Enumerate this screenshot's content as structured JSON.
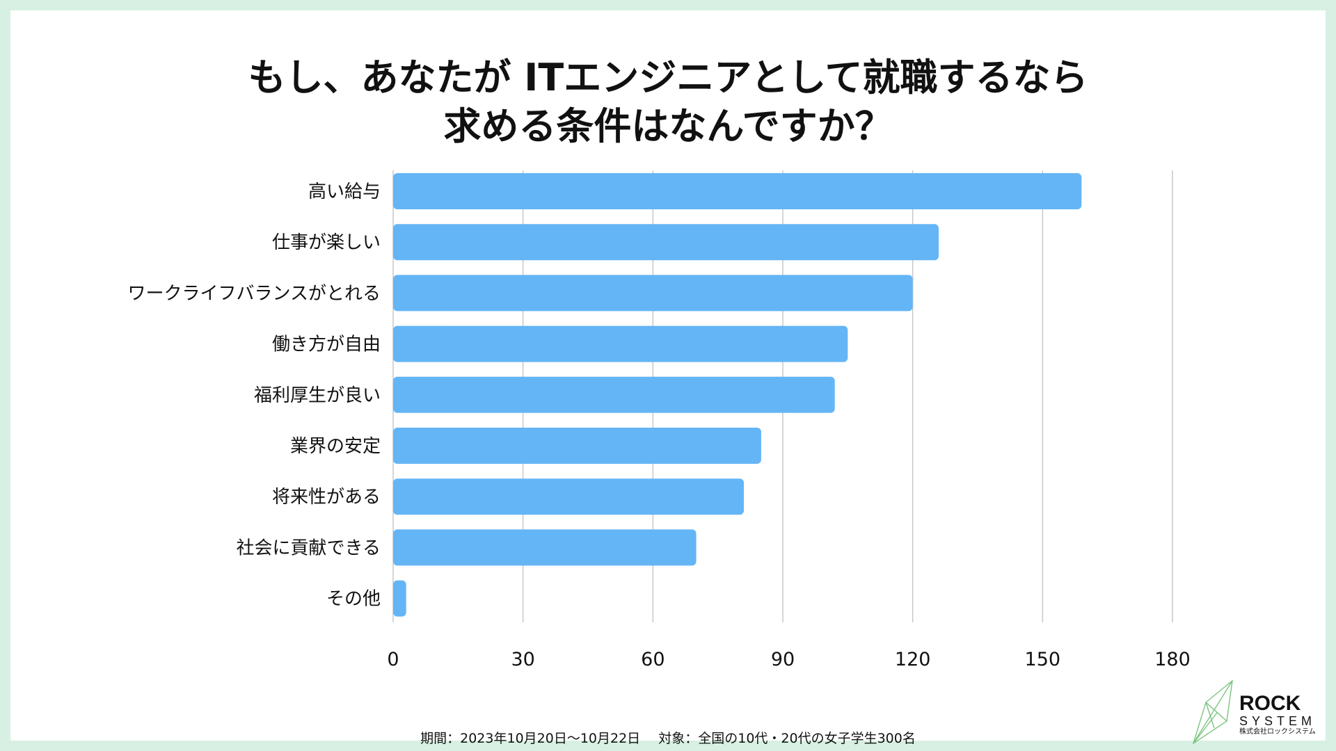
{
  "title_lines": [
    "もし、あなたが ITエンジニアとして就職するなら",
    "求める条件はなんですか？"
  ],
  "chart_data": {
    "type": "bar",
    "orientation": "horizontal",
    "title": "もし、あなたが ITエンジニアとして就職するなら求める条件はなんですか？",
    "categories": [
      "高い給与",
      "仕事が楽しい",
      "ワークライフバランスがとれる",
      "働き方が自由",
      "福利厚生が良い",
      "業界の安定",
      "将来性がある",
      "社会に貢献できる",
      "その他"
    ],
    "values": [
      159,
      126,
      120,
      105,
      102,
      85,
      81,
      70,
      3
    ],
    "xlim": [
      0,
      180
    ],
    "xticks": [
      0,
      30,
      60,
      90,
      120,
      150,
      180
    ],
    "grid": true,
    "bar_color": "#64b5f6",
    "grid_color": "#c8c8c8"
  },
  "footer": {
    "period": "期間：2023年10月20日〜10月22日",
    "target": "対象：全国の10代・20代の女子学生300名"
  },
  "logo": {
    "name_top": "ROCK",
    "name_bottom": "SYSTEM",
    "company": "株式会社ロックシステム",
    "accent_color": "#7cc47f"
  }
}
